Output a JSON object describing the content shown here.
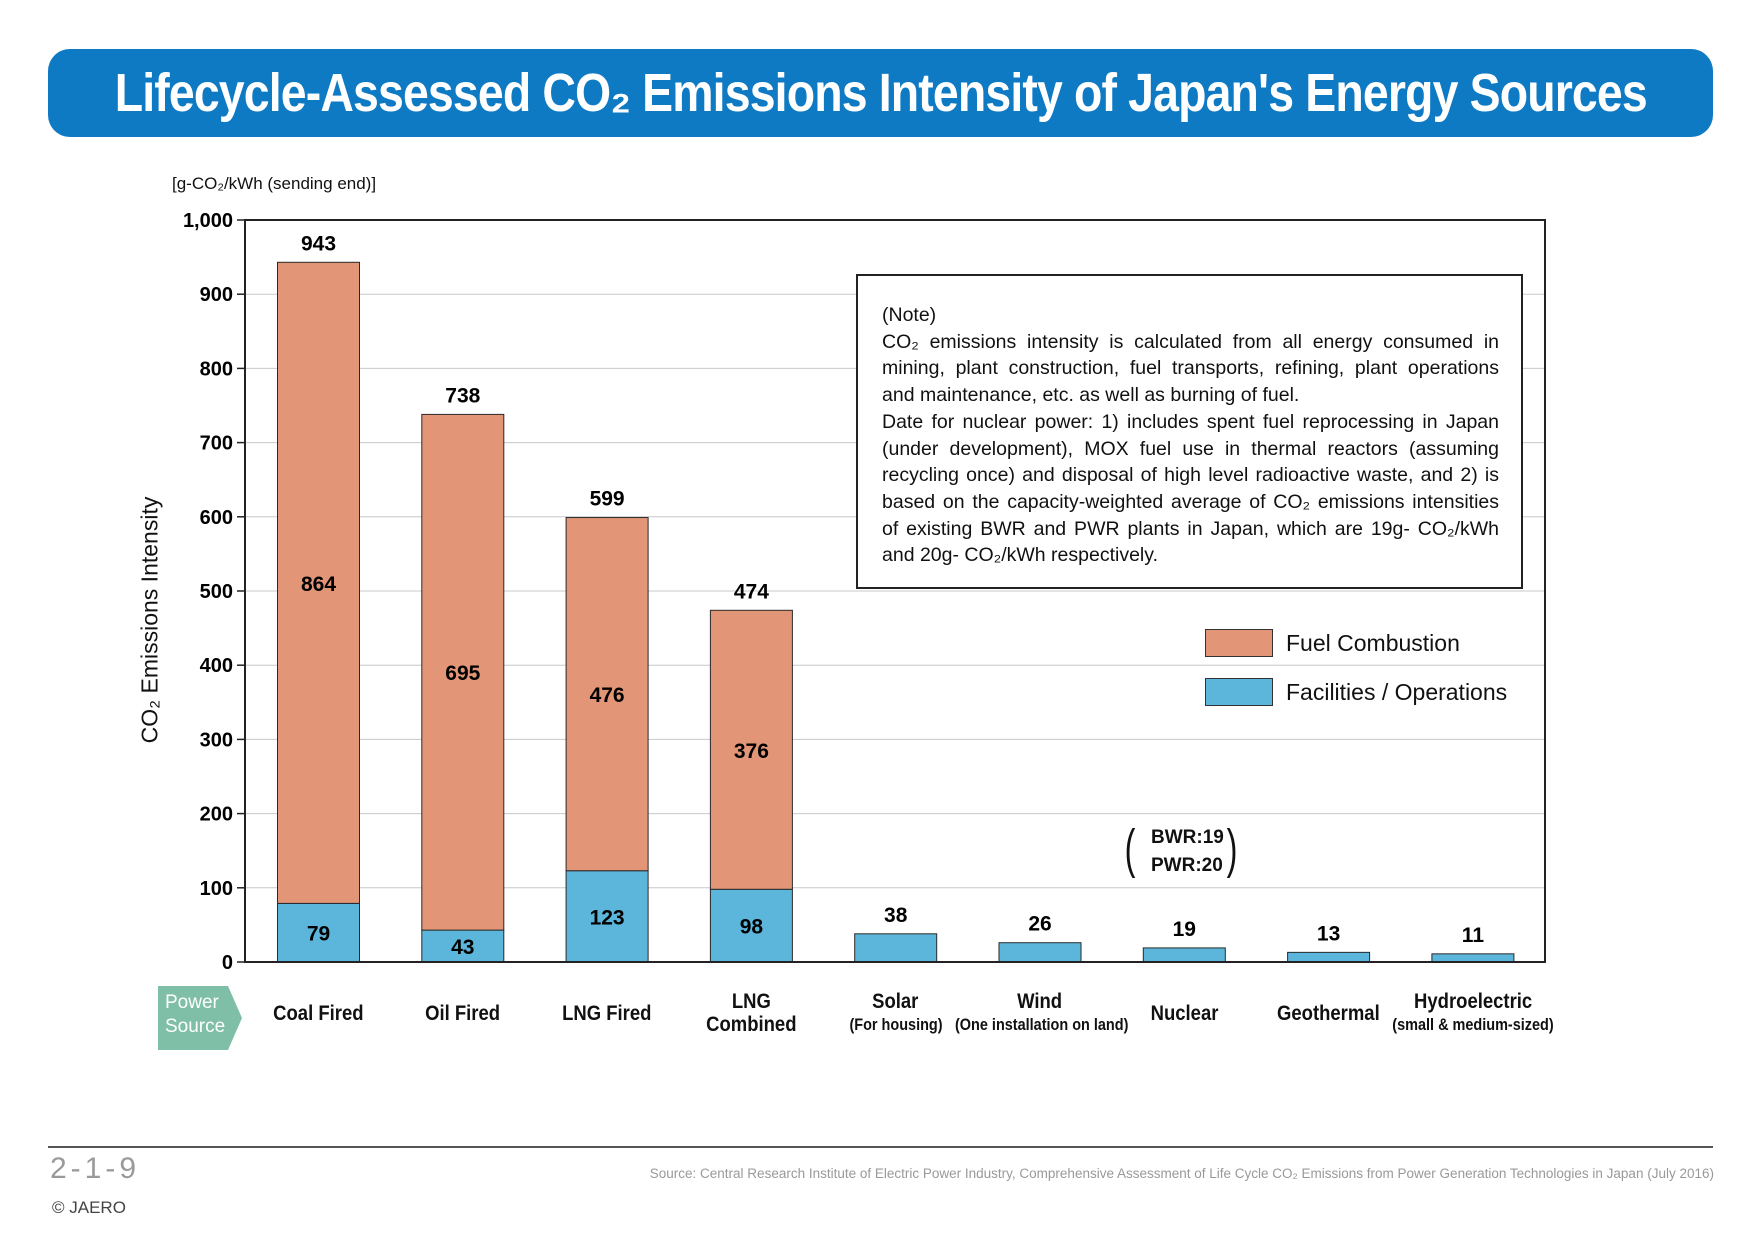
{
  "title": "Lifecycle-Assessed CO₂ Emissions Intensity of Japan's Energy Sources",
  "colors": {
    "title_bar": "#0e7ac4",
    "fuel_combustion": "#e29577",
    "facilities_operations": "#5cb5db",
    "power_source_tag": "#7fbfa8"
  },
  "chart_data": {
    "type": "bar",
    "stacked": true,
    "unit_label": "[g-CO₂/kWh (sending end)]",
    "ylabel": "CO₂ Emissions Intensity",
    "xlabel": "Power Source",
    "ylim": [
      0,
      1000
    ],
    "yticks": [
      "0",
      "100",
      "200",
      "300",
      "400",
      "500",
      "600",
      "700",
      "800",
      "900",
      "1,000"
    ],
    "grid": true,
    "legend_position": "right",
    "categories": [
      "Coal Fired",
      "Oil Fired",
      "LNG Fired",
      "LNG Combined",
      "Solar (For housing)",
      "Wind (One installation on land)",
      "Nuclear",
      "Geothermal",
      "Hydroelectric (small & medium-sized)"
    ],
    "series": [
      {
        "name": "Facilities / Operations",
        "values": [
          79,
          43,
          123,
          98,
          38,
          26,
          19,
          13,
          11
        ]
      },
      {
        "name": "Fuel Combustion",
        "values": [
          864,
          695,
          476,
          376,
          0,
          0,
          0,
          0,
          0
        ]
      }
    ],
    "totals": [
      943,
      738,
      599,
      474,
      38,
      26,
      19,
      13,
      11
    ],
    "total_labels": [
      "943",
      "738",
      "599",
      "474",
      "38",
      "26",
      "19",
      "13",
      "11"
    ],
    "facilities_labels": [
      "79",
      "43",
      "123",
      "98"
    ],
    "fuel_labels": [
      "864",
      "695",
      "476",
      "376"
    ],
    "annotation_nuclear": {
      "line1": "BWR:19",
      "line2": "PWR:20"
    }
  },
  "x_axis_labels": [
    {
      "main": "Coal Fired",
      "sub": ""
    },
    {
      "main": "Oil Fired",
      "sub": ""
    },
    {
      "main": "LNG Fired",
      "sub": ""
    },
    {
      "main": "LNG\nCombined",
      "sub": ""
    },
    {
      "main": "Solar",
      "sub": "(For housing)"
    },
    {
      "main": "Wind",
      "sub": "(One installation on land)"
    },
    {
      "main": "Nuclear",
      "sub": ""
    },
    {
      "main": "Geothermal",
      "sub": ""
    },
    {
      "main": "Hydroelectric",
      "sub": "(small & medium-sized)"
    }
  ],
  "power_source_tag": "Power\nSource",
  "note": {
    "title": "(Note)",
    "body": "CO₂ emissions intensity is calculated from all energy consumed in mining, plant construction, fuel transports, refining, plant operations and maintenance, etc. as well as burning of fuel.\nDate for nuclear power: 1) includes spent fuel reprocessing in Japan (under development), MOX fuel use in thermal reactors (assuming recycling once) and disposal of high level radioactive waste, and 2) is based on the capacity-weighted average of CO₂ emissions intensities of existing BWR and PWR plants in Japan, which are 19g- CO₂/kWh and 20g- CO₂/kWh respectively."
  },
  "legend": {
    "fuel": "Fuel Combustion",
    "facilities": "Facilities / Operations"
  },
  "footer": {
    "page_number": "2-1-9",
    "copyright": "© JAERO",
    "source": "Source: Central Research Institute of Electric Power Industry, Comprehensive Assessment of Life Cycle CO₂ Emissions from Power Generation Technologies in Japan (July 2016)"
  }
}
